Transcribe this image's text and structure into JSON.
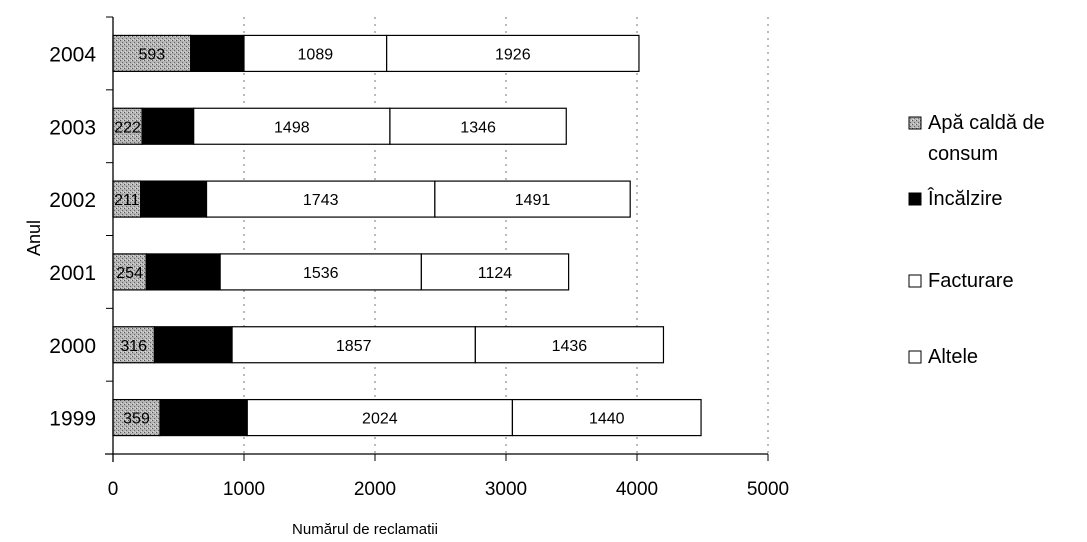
{
  "chart_data": {
    "type": "bar",
    "orientation": "horizontal",
    "stacked": true,
    "title": "",
    "xlabel": "Numărul de reclamatii",
    "ylabel": "Anul",
    "xlim": [
      0,
      5000
    ],
    "xticks": [
      "0",
      "1000",
      "2000",
      "3000",
      "4000",
      "5000"
    ],
    "categories": [
      "1999",
      "2000",
      "2001",
      "2002",
      "2003",
      "2004"
    ],
    "series": [
      {
        "name": "Apă caldă de consum",
        "values": [
          359,
          316,
          254,
          211,
          222,
          593
        ],
        "labels": [
          "359",
          "316",
          "254",
          "211",
          "222",
          "593"
        ],
        "color": "#9a9a9a",
        "pattern": "dots"
      },
      {
        "name": "Încălzire",
        "values": [
          666,
          593,
          564,
          503,
          394,
          407
        ],
        "labels": [
          "",
          "",
          "",
          "",
          "",
          ""
        ],
        "color": "#000000"
      },
      {
        "name": "Facturare",
        "values": [
          2024,
          1857,
          1536,
          1743,
          1498,
          1089
        ],
        "labels": [
          "2024",
          "1857",
          "1536",
          "1743",
          "1498",
          "1089"
        ],
        "color": "#ffffff"
      },
      {
        "name": "Altele",
        "values": [
          1440,
          1436,
          1124,
          1491,
          1346,
          1926
        ],
        "labels": [
          "1440",
          "1436",
          "1124",
          "1491",
          "1346",
          "1926"
        ],
        "color": "#ffffff"
      }
    ],
    "grid": "vertical dashed",
    "legend": "right",
    "legend_items": [
      {
        "lines": [
          "Apă caldă de",
          "consum"
        ],
        "color": "#9a9a9a",
        "pattern": "dots"
      },
      {
        "lines": [
          "Încălzire"
        ],
        "color": "#000000"
      },
      {
        "lines": [
          "Facturare"
        ],
        "color": "#ffffff"
      },
      {
        "lines": [
          "Altele"
        ],
        "color": "#ffffff"
      }
    ]
  }
}
